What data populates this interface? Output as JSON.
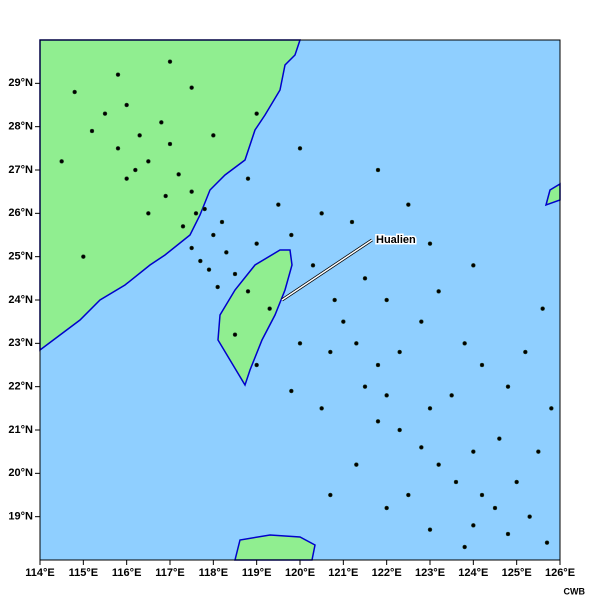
{
  "chart_data": {
    "type": "scatter",
    "annotation": "Hualien",
    "credit": "CWB",
    "xlim": [
      114,
      126
    ],
    "ylim": [
      18,
      30
    ],
    "color": "#000000",
    "xticks": [
      {
        "value": 114,
        "label": "114°E"
      },
      {
        "value": 115,
        "label": "115°E"
      },
      {
        "value": 116,
        "label": "116°E"
      },
      {
        "value": 117,
        "label": "117°E"
      },
      {
        "value": 118,
        "label": "118°E"
      },
      {
        "value": 119,
        "label": "119°E"
      },
      {
        "value": 120,
        "label": "120°E"
      },
      {
        "value": 121,
        "label": "121°E"
      },
      {
        "value": 122,
        "label": "122°E"
      },
      {
        "value": 123,
        "label": "123°E"
      },
      {
        "value": 124,
        "label": "124°E"
      },
      {
        "value": 125,
        "label": "125°E"
      },
      {
        "value": 126,
        "label": "126°E"
      }
    ],
    "yticks": [
      {
        "value": 19,
        "label": "19°N"
      },
      {
        "value": 20,
        "label": "20°N"
      },
      {
        "value": 21,
        "label": "21°N"
      },
      {
        "value": 22,
        "label": "22°N"
      },
      {
        "value": 23,
        "label": "23°N"
      },
      {
        "value": 24,
        "label": "24°N"
      },
      {
        "value": 25,
        "label": "25°N"
      },
      {
        "value": 26,
        "label": "26°N"
      },
      {
        "value": 27,
        "label": "27°N"
      },
      {
        "value": 28,
        "label": "28°N"
      },
      {
        "value": 29,
        "label": "29°N"
      }
    ],
    "x": [
      115.5,
      116,
      116.3,
      116.8,
      115.8,
      116.5,
      117,
      117.2,
      116.9,
      117.5,
      117.8,
      117.3,
      118,
      118.3,
      117.7,
      118.5,
      118.1,
      118.8,
      117.5,
      116.5,
      116,
      115.2,
      114.8,
      115.8,
      117.5,
      118,
      118.8,
      119.5,
      119.8,
      120.3,
      120.5,
      121.2,
      121.5,
      120.8,
      121,
      120.7,
      121.3,
      121.8,
      121.5,
      122,
      122.3,
      122.8,
      123.2,
      123.8,
      121.8,
      122.3,
      122.8,
      123,
      123.5,
      123.2,
      123.6,
      124,
      124.2,
      124.5,
      124,
      124.8,
      125.3,
      125,
      124.6,
      125.5,
      125.8,
      124.8,
      124.2,
      125.2,
      122.5,
      122,
      123,
      125.7,
      119,
      119.8,
      120.5,
      118.5,
      117,
      119,
      120,
      121.8,
      122.5,
      123,
      124,
      115,
      114.5,
      119.3,
      120,
      122,
      121.3,
      120.7,
      123.8,
      125.6,
      116.2,
      117.6,
      118.2,
      117.9,
      119
    ],
    "y": [
      28.3,
      28.5,
      27.8,
      28.1,
      27.5,
      27.2,
      27.6,
      26.9,
      26.4,
      26.5,
      26.1,
      25.7,
      25.5,
      25.1,
      24.9,
      24.6,
      24.3,
      24.2,
      25.2,
      26,
      26.8,
      27.9,
      28.8,
      29.2,
      28.9,
      27.8,
      26.8,
      26.2,
      25.5,
      24.8,
      26,
      25.8,
      24.5,
      24,
      23.5,
      22.8,
      23,
      22.5,
      22,
      21.8,
      22.8,
      23.5,
      24.2,
      23,
      21.2,
      21,
      20.6,
      21.5,
      21.8,
      20.2,
      19.8,
      20.5,
      19.5,
      19.2,
      18.8,
      18.6,
      19,
      19.8,
      20.8,
      20.5,
      21.5,
      22,
      22.5,
      22.8,
      19.5,
      19.2,
      18.7,
      18.4,
      22.5,
      21.9,
      21.5,
      23.2,
      29.5,
      28.3,
      27.5,
      27,
      26.2,
      25.3,
      24.8,
      25,
      27.2,
      23.8,
      23,
      24,
      20.2,
      19.5,
      18.3,
      23.8,
      27,
      26,
      25.8,
      24.7,
      25.3
    ]
  }
}
